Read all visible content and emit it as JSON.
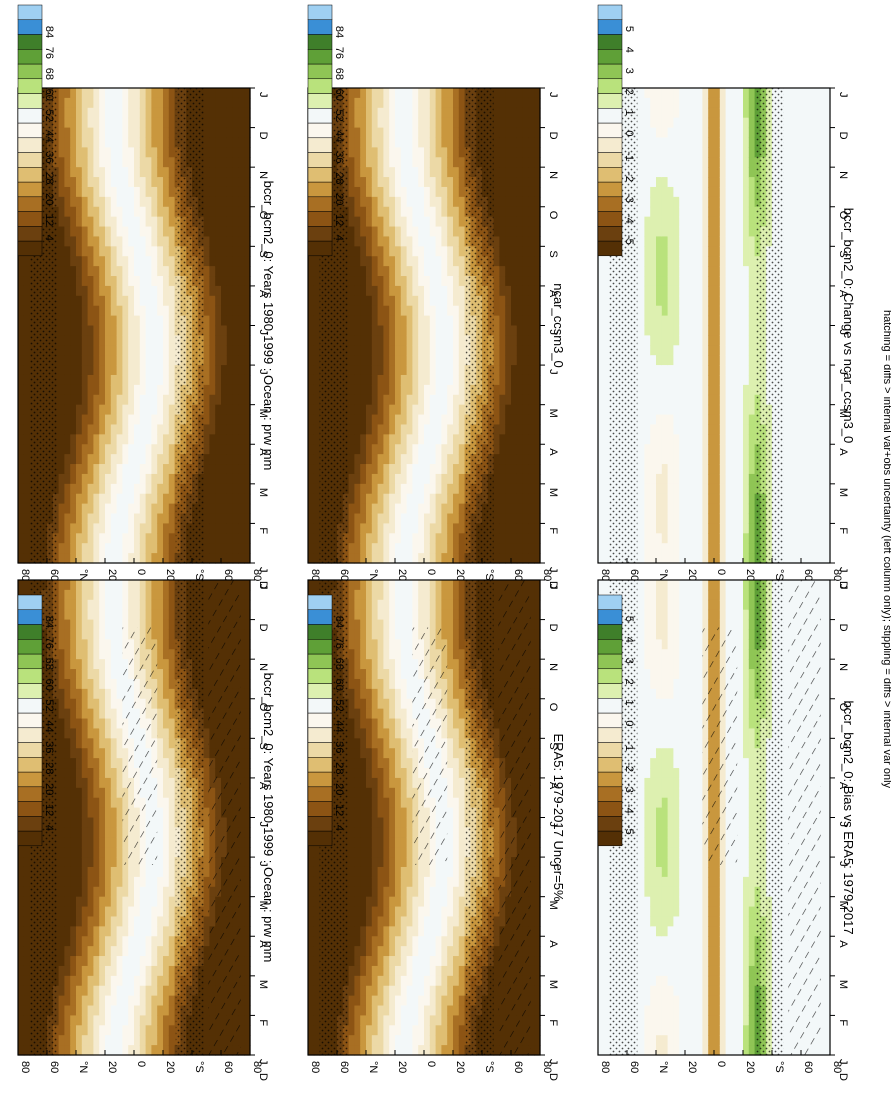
{
  "figure": {
    "footnote": "hatching = diffs > internal var+obs uncertainty (left column only); stippling = diffs > internal var only"
  },
  "colors": {
    "abs_scale": [
      "#543005",
      "#6b400f",
      "#8c5414",
      "#a86f23",
      "#c9973e",
      "#dfbe72",
      "#ecd9a6",
      "#f5ebd0",
      "#fbf7ee",
      "#f3f8f9",
      "#ddf0b0",
      "#b9e27c",
      "#8fc555",
      "#5fa037",
      "#3f7f2a",
      "#3a8fd6",
      "#9fd0f2"
    ],
    "diff_scale": [
      "#543005",
      "#6b400f",
      "#8c5414",
      "#a86f23",
      "#c9973e",
      "#dfbe72",
      "#ecd9a6",
      "#f5ebd0",
      "#fbf7ee",
      "#f3f8f9",
      "#ddf0b0",
      "#b9e27c",
      "#8fc555",
      "#5fa037",
      "#3f7f2a",
      "#3a8fd6",
      "#9fd0f2"
    ]
  },
  "panels": [
    {
      "title": "bccr_bcm2_0: Years 1980-1999 : Ocean : prw mm",
      "kind": "abs",
      "hatch": true,
      "colorbar": [
        "84",
        "76",
        "68",
        "60",
        "52",
        "44",
        "36",
        "28",
        "20",
        "12",
        "4"
      ]
    },
    {
      "title": "bccr_bcm2_0: Years 1980-1999 : Ocean : prw mm",
      "kind": "abs",
      "hatch": false,
      "colorbar": [
        "84",
        "76",
        "68",
        "60",
        "52",
        "44",
        "36",
        "28",
        "20",
        "12",
        "4"
      ]
    },
    {
      "title": "ERA5: 1979-2017 Uncer=5%",
      "kind": "abs",
      "hatch": true,
      "colorbar": [
        "84",
        "76",
        "68",
        "60",
        "52",
        "44",
        "36",
        "28",
        "20",
        "12",
        "4"
      ]
    },
    {
      "title": "ncar_ccsm3_0",
      "kind": "abs",
      "hatch": false,
      "colorbar": [
        "84",
        "76",
        "68",
        "60",
        "52",
        "44",
        "36",
        "28",
        "20",
        "12",
        "4"
      ]
    },
    {
      "title": "bccr_bcm2_0: Bias vs ERA5: 1979-2017",
      "kind": "diff",
      "hatch": true,
      "colorbar": [
        "5",
        "4",
        "3",
        "2",
        "1",
        "0",
        "-1",
        "-2",
        "-3",
        "-4",
        "-5"
      ]
    },
    {
      "title": "bccr_bcm2_0: Change vs ncar_ccsm3_0",
      "kind": "diff",
      "hatch": false,
      "colorbar": [
        "5",
        "4",
        "3",
        "2",
        "1",
        "0",
        "-1",
        "-2",
        "-3",
        "-4",
        "-5"
      ]
    }
  ],
  "axes": {
    "lat_ticks": [
      "80",
      "60",
      "°N",
      "20",
      "0",
      "20",
      "°S",
      "60",
      "80"
    ],
    "month_ticks": [
      "J",
      "F",
      "M",
      "A",
      "M",
      "J",
      "J",
      "A",
      "S",
      "O",
      "N",
      "D",
      "J"
    ],
    "d_label": "D"
  },
  "chart_data": [
    {
      "type": "heatmap",
      "title": "bccr_bcm2_0: Years 1980-1999 : Ocean : prw mm",
      "x": [
        "J",
        "F",
        "M",
        "A",
        "M",
        "J",
        "J",
        "A",
        "S",
        "O",
        "N",
        "D",
        "J"
      ],
      "y": [
        "80N",
        "60N",
        "40N",
        "20N",
        "0",
        "20S",
        "40S",
        "60S",
        "80S"
      ],
      "levels": [
        4,
        12,
        20,
        28,
        36,
        44,
        52,
        60,
        68,
        76,
        84
      ]
    },
    {
      "type": "heatmap",
      "title": "ERA5: 1979-2017 Uncer=5%",
      "x": [
        "J",
        "F",
        "M",
        "A",
        "M",
        "J",
        "J",
        "A",
        "S",
        "O",
        "N",
        "D",
        "J"
      ],
      "y": [
        "80N",
        "60N",
        "40N",
        "20N",
        "0",
        "20S",
        "40S",
        "60S",
        "80S"
      ],
      "levels": [
        4,
        12,
        20,
        28,
        36,
        44,
        52,
        60,
        68,
        76,
        84
      ]
    },
    {
      "type": "heatmap",
      "title": "ncar_ccsm3_0",
      "x": [
        "J",
        "F",
        "M",
        "A",
        "M",
        "J",
        "J",
        "A",
        "S",
        "O",
        "N",
        "D",
        "J"
      ],
      "y": [
        "80N",
        "60N",
        "40N",
        "20N",
        "0",
        "20S",
        "40S",
        "60S",
        "80S"
      ],
      "levels": [
        4,
        12,
        20,
        28,
        36,
        44,
        52,
        60,
        68,
        76,
        84
      ]
    },
    {
      "type": "heatmap",
      "title": "bccr_bcm2_0: Bias vs ERA5: 1979-2017",
      "x": [
        "J",
        "F",
        "M",
        "A",
        "M",
        "J",
        "J",
        "A",
        "S",
        "O",
        "N",
        "D",
        "J"
      ],
      "y": [
        "80N",
        "60N",
        "40N",
        "20N",
        "0",
        "20S",
        "40S",
        "60S",
        "80S"
      ],
      "levels": [
        -5,
        -4,
        -3,
        -2,
        -1,
        0,
        1,
        2,
        3,
        4,
        5
      ]
    },
    {
      "type": "heatmap",
      "title": "bccr_bcm2_0: Change vs ncar_ccsm3_0",
      "x": [
        "J",
        "F",
        "M",
        "A",
        "M",
        "J",
        "J",
        "A",
        "S",
        "O",
        "N",
        "D",
        "J"
      ],
      "y": [
        "80N",
        "60N",
        "40N",
        "20N",
        "0",
        "20S",
        "40S",
        "60S",
        "80S"
      ],
      "levels": [
        -5,
        -4,
        -3,
        -2,
        -1,
        0,
        1,
        2,
        3,
        4,
        5
      ]
    }
  ]
}
